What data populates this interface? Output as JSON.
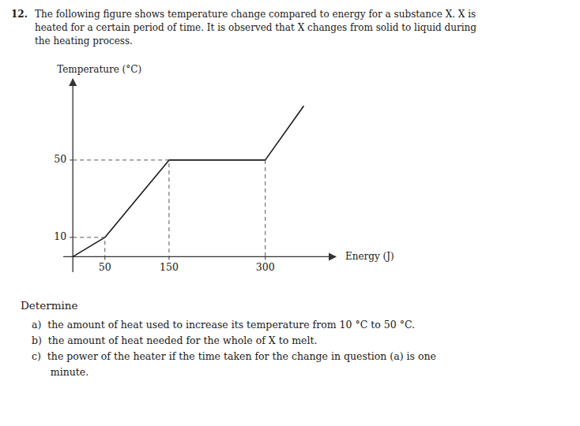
{
  "chart_data": {
    "type": "line",
    "title": "12.",
    "subtitle": "The following figure shows temperature change compared to energy for a substance X. X is\nheated for a certain period of time. It is observed that X changes from solid to liquid during\nthe heating process.",
    "x_label": "Energy (J)",
    "y_label": "Temperature (°C)",
    "xlim": [
      -15,
      410
    ],
    "ylim": [
      -8,
      92
    ],
    "xticks": [
      50,
      150,
      300
    ],
    "yticks": [
      10,
      50
    ],
    "grid": false,
    "series": [
      {
        "x": [
          0,
          50,
          150,
          300,
          360
        ],
        "values": [
          0,
          10,
          50,
          50,
          78
        ],
        "color": "#1a1a1a",
        "line_style": "solid"
      },
      {
        "x": [
          0,
          50,
          50
        ],
        "values": [
          10,
          10,
          0
        ],
        "color": "#555555",
        "line_style": "dashed"
      },
      {
        "x": [
          0,
          150,
          150
        ],
        "values": [
          50,
          50,
          0
        ],
        "color": "#555555",
        "line_style": "dashed"
      },
      {
        "x": [
          300,
          300
        ],
        "values": [
          50,
          0
        ],
        "color": "#555555",
        "line_style": "dashed"
      }
    ],
    "annotations": [
      "Determine",
      "a)  the amount of heat used to increase its temperature from 10 °C to 50 °C.",
      "b)  the amount of heat needed for the whole of X to melt.",
      "c)  the power of the heater if the time taken for the change in question (a) is one",
      "      minute."
    ]
  }
}
